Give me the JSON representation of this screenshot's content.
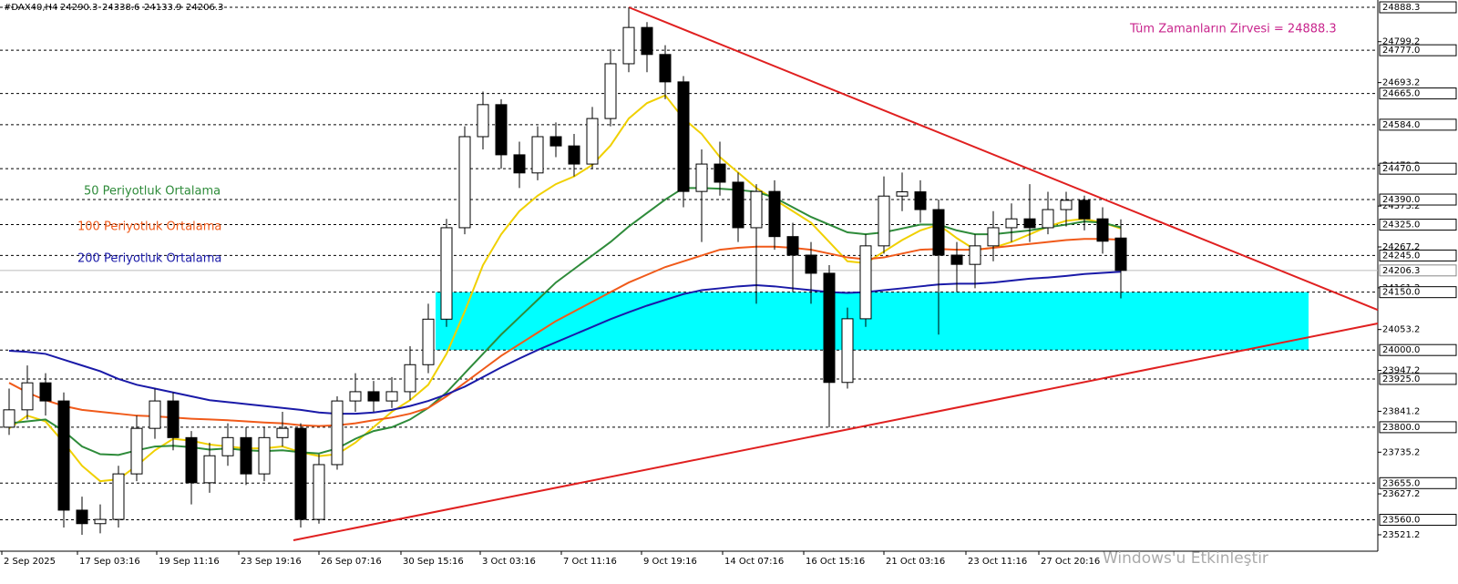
{
  "chart_data": {
    "type": "candlestick",
    "symbol": "#DAX40,H4",
    "annotation": "Tüm Zamanların Zirvesi = 24888.3",
    "watermark": "Windows'u Etkinleştir",
    "ylim": [
      23478.6,
      24907.2
    ],
    "xlim": [
      -0.5,
      75.1
    ],
    "yticks": [
      24799.2,
      24693.2,
      24479.2,
      24373.2,
      24267.2,
      24161.2,
      24053.2,
      23947.2,
      23841.2,
      23735.2,
      23627.2,
      23521.2
    ],
    "xticks": [
      {
        "value": -0.4,
        "label": "2 Sep 2025"
      },
      {
        "value": 3.75,
        "label": "17 Sep 03:16"
      },
      {
        "value": 8.1,
        "label": "19 Sep 11:16"
      },
      {
        "value": 12.6,
        "label": "23 Sep 19:16"
      },
      {
        "value": 17,
        "label": "26 Sep 07:16"
      },
      {
        "value": 21.5,
        "label": "30 Sep 15:16"
      },
      {
        "value": 25.85,
        "label": "3 Oct 03:16"
      },
      {
        "value": 30.3,
        "label": "7 Oct 11:16"
      },
      {
        "value": 34.7,
        "label": "9 Oct 19:16"
      },
      {
        "value": 39.15,
        "label": "14 Oct 07:16"
      },
      {
        "value": 43.6,
        "label": "16 Oct 15:16"
      },
      {
        "value": 48,
        "label": "21 Oct 03:16"
      },
      {
        "value": 52.5,
        "label": "23 Oct 11:16"
      },
      {
        "value": 56.5,
        "label": "27 Oct 20:16"
      }
    ],
    "levels": [
      24888.3,
      {
        "value": 24777,
        "label": "24777.0"
      },
      {
        "value": 24665,
        "label": "24665.0"
      },
      {
        "value": 24584,
        "label": "24584.0"
      },
      {
        "value": 24470,
        "label": "24470.0"
      },
      {
        "value": 24390,
        "label": "24390.0"
      },
      {
        "value": 24325,
        "label": "24325.0"
      },
      {
        "value": 24245,
        "label": "24245.0"
      },
      {
        "value": 24150,
        "label": "24150.0"
      },
      {
        "value": 24000,
        "label": "24000.0"
      },
      {
        "value": 23925,
        "label": "23925.0"
      },
      {
        "value": 23800,
        "label": "23800.0"
      },
      {
        "value": 23655,
        "label": "23655.0"
      },
      {
        "value": 23560,
        "label": "23560.0"
      }
    ],
    "zone": {
      "x": [
        23.4,
        71.3
      ],
      "y": [
        24150,
        24000
      ],
      "color": "#00ffff"
    },
    "trendlines": [
      {
        "x": [
          34,
          75.1
        ],
        "y": [
          24888.3,
          24104
        ],
        "color": "#e02020"
      },
      {
        "x": [
          15.6,
          75.1
        ],
        "y": [
          23507,
          24069
        ],
        "color": "#e02020"
      }
    ],
    "open": [
      23800,
      23845,
      23915,
      23868,
      23585,
      23550,
      23561,
      23679,
      23797,
      23868,
      23773,
      23656,
      23726,
      23773,
      23679,
      23773,
      23797,
      23561,
      23703,
      23868,
      23892,
      23868,
      23892,
      23962,
      24080,
      24317,
      24553,
      24636,
      24506,
      24459,
      24553,
      24529,
      24482,
      24600,
      24742,
      24836,
      24766,
      24695,
      24411,
      24482,
      24435,
      24317,
      24411,
      24294,
      24246,
      24199,
      23916,
      24081,
      24270,
      24399,
      24410,
      24364,
      24246,
      24222,
      24270,
      24317,
      24340,
      24317,
      24364,
      24388,
      24340,
      24290.3
    ],
    "high": [
      23900,
      23960,
      23940,
      23890,
      23620,
      23600,
      23700,
      23830,
      23900,
      23890,
      23790,
      23760,
      23810,
      23800,
      23800,
      23840,
      23810,
      23730,
      23880,
      23940,
      23920,
      23930,
      24010,
      24120,
      24340,
      24580,
      24670,
      24650,
      24540,
      24580,
      24590,
      24560,
      24630,
      24780,
      24888.3,
      24850,
      24790,
      24710,
      24520,
      24540,
      24460,
      24430,
      24440,
      24330,
      24280,
      24220,
      24110,
      24300,
      24450,
      24460,
      24440,
      24390,
      24280,
      24300,
      24360,
      24380,
      24430,
      24410,
      24410,
      24400,
      24370,
      24338.6
    ],
    "low": [
      23780,
      23820,
      23830,
      23540,
      23521.2,
      23525,
      23540,
      23660,
      23770,
      23740,
      23600,
      23630,
      23700,
      23650,
      23660,
      23750,
      23540,
      23550,
      23690,
      23840,
      23840,
      23850,
      23870,
      23940,
      24060,
      24300,
      24520,
      24470,
      24420,
      24440,
      24500,
      24450,
      24470,
      24580,
      24720,
      24720,
      24650,
      24370,
      24280,
      24400,
      24280,
      24120,
      24260,
      24150,
      24120,
      23800,
      23900,
      24060,
      24250,
      24360,
      24330,
      24040,
      24150,
      24160,
      24230,
      24280,
      24280,
      24300,
      24320,
      24310,
      24250,
      24133.9
    ],
    "close": [
      23845,
      23915,
      23868,
      23585,
      23550,
      23561,
      23679,
      23797,
      23868,
      23773,
      23656,
      23726,
      23773,
      23679,
      23773,
      23797,
      23561,
      23703,
      23868,
      23892,
      23868,
      23892,
      23962,
      24080,
      24317,
      24553,
      24636,
      24506,
      24459,
      24553,
      24529,
      24482,
      24600,
      24742,
      24836,
      24766,
      24695,
      24411,
      24482,
      24435,
      24317,
      24411,
      24294,
      24246,
      24199,
      23916,
      24081,
      24270,
      24399,
      24410,
      24364,
      24246,
      24222,
      24270,
      24317,
      24340,
      24317,
      24364,
      24388,
      24340,
      24282,
      24206.3
    ],
    "series": [
      {
        "color": "#f0d000",
        "values": [
          23797,
          23830,
          23815,
          23760,
          23700,
          23660,
          23665,
          23700,
          23740,
          23770,
          23765,
          23755,
          23750,
          23745,
          23745,
          23750,
          23735,
          23725,
          23730,
          23760,
          23800,
          23840,
          23870,
          23910,
          23990,
          24100,
          24220,
          24300,
          24360,
          24400,
          24430,
          24450,
          24480,
          24530,
          24600,
          24640,
          24660,
          24600,
          24560,
          24500,
          24460,
          24420,
          24390,
          24360,
          24330,
          24280,
          24230,
          24225,
          24255,
          24285,
          24310,
          24325,
          24290,
          24260,
          24265,
          24280,
          24300,
          24320,
          24335,
          24340,
          24330,
          24315
        ]
      },
      {
        "name": "50 Periyotluk Ortalama",
        "color": "#2e8b3a",
        "values": [
          23810,
          23815,
          23820,
          23790,
          23750,
          23730,
          23728,
          23740,
          23750,
          23752,
          23748,
          23742,
          23745,
          23740,
          23738,
          23740,
          23735,
          23732,
          23745,
          23770,
          23790,
          23800,
          23820,
          23850,
          23890,
          23940,
          23990,
          24040,
          24085,
          24130,
          24175,
          24210,
          24245,
          24280,
          24320,
          24355,
          24390,
          24420,
          24420,
          24418,
          24415,
          24410,
          24395,
          24370,
          24345,
          24325,
          24305,
          24300,
          24305,
          24315,
          24325,
          24325,
          24310,
          24300,
          24300,
          24305,
          24310,
          24318,
          24325,
          24333,
          24330,
          24318
        ]
      },
      {
        "name": "100 Periyotluk Ortalama",
        "color": "#f05a1a",
        "values": [
          23915,
          23890,
          23870,
          23855,
          23845,
          23840,
          23835,
          23830,
          23828,
          23825,
          23822,
          23820,
          23818,
          23815,
          23812,
          23810,
          23805,
          23803,
          23805,
          23810,
          23818,
          23825,
          23835,
          23850,
          23880,
          23915,
          23950,
          23985,
          24015,
          24045,
          24075,
          24100,
          24125,
          24150,
          24175,
          24195,
          24215,
          24230,
          24245,
          24260,
          24265,
          24268,
          24268,
          24265,
          24260,
          24250,
          24240,
          24235,
          24240,
          24250,
          24260,
          24262,
          24260,
          24260,
          24265,
          24270,
          24275,
          24280,
          24285,
          24288,
          24288,
          24286
        ]
      },
      {
        "name": "200 Periyotluk Ortalama",
        "color": "#1a1aa8",
        "values": [
          23998,
          23995,
          23990,
          23975,
          23960,
          23945,
          23925,
          23910,
          23900,
          23890,
          23880,
          23870,
          23865,
          23860,
          23855,
          23850,
          23845,
          23838,
          23835,
          23835,
          23838,
          23845,
          23855,
          23868,
          23885,
          23905,
          23930,
          23955,
          23978,
          24000,
          24020,
          24040,
          24060,
          24080,
          24098,
          24115,
          24130,
          24145,
          24155,
          24160,
          24165,
          24168,
          24165,
          24160,
          24155,
          24150,
          24148,
          24150,
          24155,
          24160,
          24165,
          24170,
          24172,
          24172,
          24175,
          24180,
          24185,
          24188,
          24192,
          24197,
          24200,
          24203
        ]
      }
    ]
  }
}
